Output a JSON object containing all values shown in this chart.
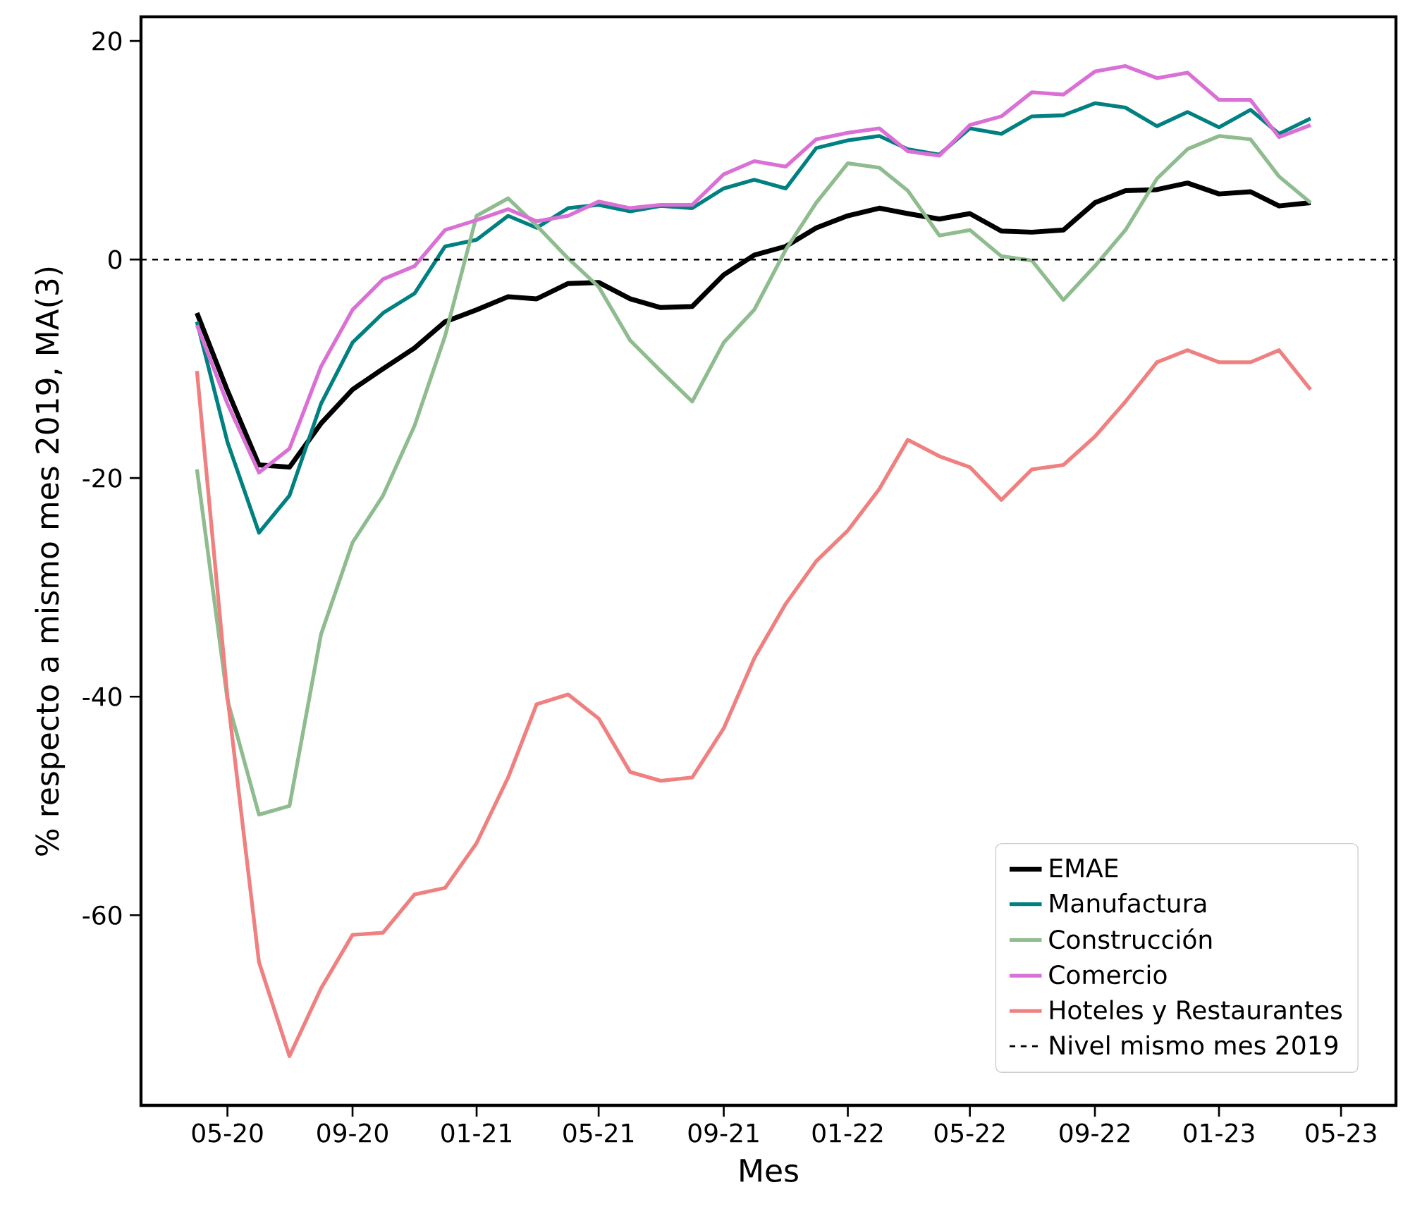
{
  "chart_data": {
    "type": "line",
    "xlabel": "Mes",
    "ylabel": "% respecto a mismo mes 2019, MA(3)",
    "x": [
      "2020-04",
      "2020-05",
      "2020-06",
      "2020-07",
      "2020-08",
      "2020-09",
      "2020-10",
      "2020-11",
      "2020-12",
      "2021-01",
      "2021-02",
      "2021-03",
      "2021-04",
      "2021-05",
      "2021-06",
      "2021-07",
      "2021-08",
      "2021-09",
      "2021-10",
      "2021-11",
      "2021-12",
      "2022-01",
      "2022-02",
      "2022-03",
      "2022-04",
      "2022-05",
      "2022-06",
      "2022-07",
      "2022-08",
      "2022-09",
      "2022-10",
      "2022-11",
      "2022-12",
      "2023-01",
      "2023-02",
      "2023-03",
      "2023-04"
    ],
    "series": [
      {
        "name": "EMAE",
        "color": "#000000",
        "values": [
          -4.9,
          -12.0,
          -18.8,
          -19.0,
          -15.0,
          -11.9,
          -10.0,
          -8.1,
          -5.7,
          -4.6,
          -3.4,
          -3.6,
          -2.2,
          -2.1,
          -3.6,
          -4.4,
          -4.3,
          -1.4,
          0.4,
          1.2,
          2.9,
          4.0,
          4.7,
          4.2,
          3.7,
          4.2,
          2.6,
          2.5,
          2.7,
          5.2,
          6.3,
          6.4,
          7.0,
          6.0,
          6.2,
          4.9,
          5.2
        ]
      },
      {
        "name": "Manufactura",
        "color": "#008080",
        "values": [
          -5.7,
          -16.7,
          -25.0,
          -21.6,
          -13.2,
          -7.6,
          -4.9,
          -3.1,
          1.2,
          1.8,
          4.0,
          2.9,
          4.7,
          5.0,
          4.4,
          4.9,
          4.7,
          6.5,
          7.3,
          6.5,
          10.2,
          10.9,
          11.3,
          10.1,
          9.6,
          12.0,
          11.5,
          13.1,
          13.2,
          14.3,
          13.9,
          12.2,
          13.5,
          12.1,
          13.7,
          11.5,
          12.9
        ]
      },
      {
        "name": "Construcción",
        "color": "#8fbc8f",
        "values": [
          -19.2,
          -40.3,
          -50.8,
          -50.0,
          -34.3,
          -25.9,
          -21.6,
          -15.2,
          -7.0,
          4.0,
          5.6,
          3.1,
          0.1,
          -2.5,
          -7.4,
          -10.2,
          -13.0,
          -7.6,
          -4.6,
          0.9,
          5.2,
          8.8,
          8.4,
          6.3,
          2.2,
          2.7,
          0.3,
          -0.1,
          -3.7,
          -0.6,
          2.7,
          7.4,
          10.1,
          11.3,
          11.0,
          7.6,
          5.2
        ]
      },
      {
        "name": "Comercio",
        "color": "#da70d6",
        "values": [
          -6.0,
          -13.2,
          -19.5,
          -17.3,
          -9.8,
          -4.6,
          -1.8,
          -0.6,
          2.7,
          3.6,
          4.6,
          3.5,
          4.0,
          5.3,
          4.7,
          5.0,
          5.0,
          7.8,
          9.0,
          8.5,
          11.0,
          11.6,
          12.0,
          9.9,
          9.5,
          12.3,
          13.1,
          15.3,
          15.1,
          17.2,
          17.7,
          16.6,
          17.1,
          14.6,
          14.6,
          11.2,
          12.3
        ]
      },
      {
        "name": "Hoteles y Restaurantes",
        "color": "#f08080",
        "values": [
          -10.2,
          -40.0,
          -64.3,
          -72.9,
          -66.7,
          -61.8,
          -61.6,
          -58.1,
          -57.5,
          -53.4,
          -47.4,
          -40.7,
          -39.8,
          -42.0,
          -46.9,
          -47.7,
          -47.4,
          -42.9,
          -36.5,
          -31.5,
          -27.6,
          -24.8,
          -21.0,
          -16.5,
          -18.0,
          -19.0,
          -22.0,
          -19.2,
          -18.8,
          -16.2,
          -13.0,
          -9.4,
          -8.3,
          -9.4,
          -9.4,
          -8.3,
          -11.9
        ]
      }
    ],
    "xlim": [
      "2020-02-06",
      "2023-06-24"
    ],
    "xticks": [
      {
        "value": "2020-05",
        "label": "05-20"
      },
      {
        "value": "2020-09",
        "label": "09-20"
      },
      {
        "value": "2021-01",
        "label": "01-21"
      },
      {
        "value": "2021-05",
        "label": "05-21"
      },
      {
        "value": "2021-09",
        "label": "09-21"
      },
      {
        "value": "2022-01",
        "label": "01-22"
      },
      {
        "value": "2022-05",
        "label": "05-22"
      },
      {
        "value": "2022-09",
        "label": "09-22"
      },
      {
        "value": "2023-01",
        "label": "01-23"
      },
      {
        "value": "2023-05",
        "label": "05-23"
      }
    ],
    "ylim": [
      -77.4,
      22.2
    ],
    "yticks": [
      -60,
      -40,
      -20,
      0,
      20
    ],
    "ref_lines": [
      {
        "axis": "y",
        "value": 0,
        "label": "Nivel mismo mes 2019",
        "color": "#000000",
        "line_style": "dashed"
      }
    ],
    "legend": "bottom right",
    "grid": false
  }
}
